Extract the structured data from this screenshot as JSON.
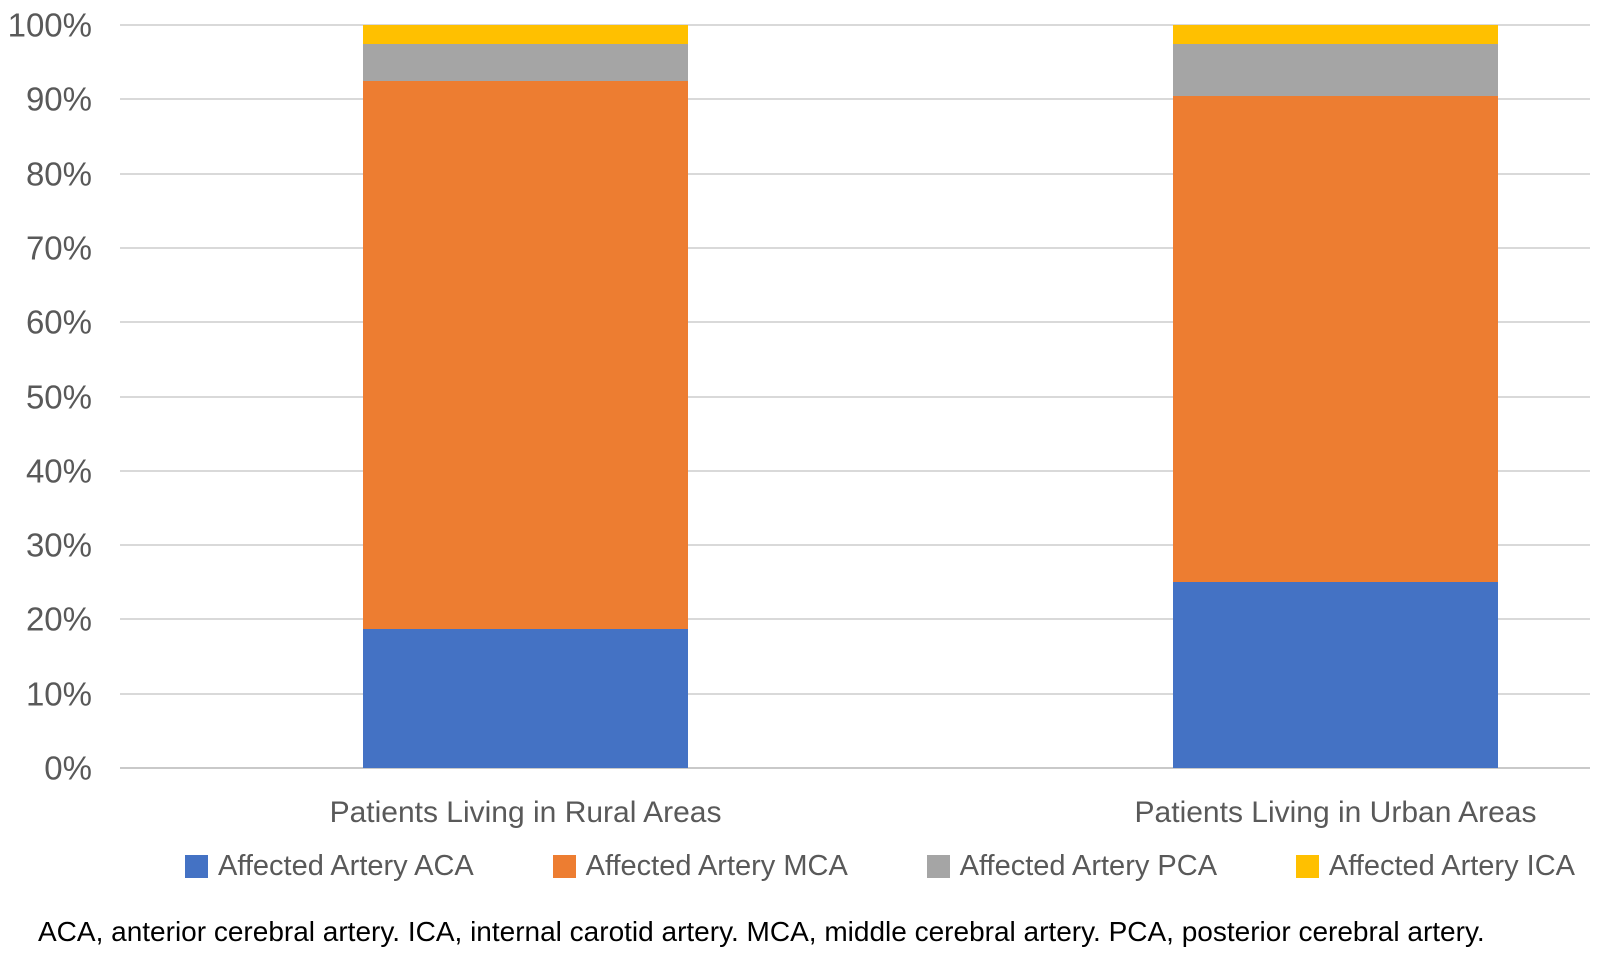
{
  "chart_data": {
    "type": "bar",
    "variant": "stacked-100-percent",
    "categories": [
      "Patients Living in Rural Areas",
      "Patients Living in Urban Areas"
    ],
    "series": [
      {
        "name": "Affected Artery ACA",
        "color": "#4472C4",
        "values": [
          18.5,
          25
        ]
      },
      {
        "name": "Affected Artery MCA",
        "color": "#ED7D31",
        "values": [
          73,
          65.5
        ]
      },
      {
        "name": "Affected Artery PCA",
        "color": "#A5A5A5",
        "values": [
          5,
          7
        ]
      },
      {
        "name": "Affected Artery ICA",
        "color": "#FFC000",
        "values": [
          2.5,
          2.5
        ]
      }
    ],
    "ylim": [
      0,
      100
    ],
    "ytick_step": 10,
    "ytick_suffix": "%",
    "grid": true,
    "legend_position": "bottom"
  },
  "footnote": "ACA, anterior cerebral artery. ICA, internal carotid artery. MCA, middle cerebral artery. PCA, posterior cerebral artery.",
  "colors": {
    "background": "#FFFFFF",
    "gridline": "#D9D9D9",
    "axis_line": "#C9C9C9",
    "axis_text": "#595959",
    "category_text": "#595959",
    "legend_text": "#595959",
    "footnote_text": "#000000"
  }
}
